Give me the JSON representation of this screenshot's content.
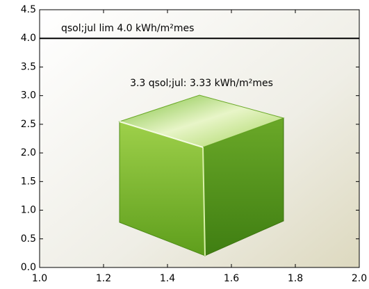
{
  "chart_data": {
    "type": "hline",
    "limit": {
      "value": 4.0,
      "label": "qsol;jul lim 4.0 kWh/m²mes"
    },
    "annotation": "3.3 qsol;jul: 3.33 kWh/m²mes",
    "color": "#000000",
    "xlim": [
      1.0,
      2.0
    ],
    "xticks": [
      {
        "value": 1,
        "label": "1.0"
      },
      1.2,
      1.4,
      1.6,
      1.8,
      {
        "value": 2,
        "label": "2.0"
      }
    ],
    "ylim": [
      0,
      4.5
    ],
    "yticks": [
      {
        "value": 0,
        "label": "0.0"
      },
      0.5,
      {
        "value": 1,
        "label": "1.0"
      },
      1.5,
      {
        "value": 2,
        "label": "2.0"
      },
      2.5,
      {
        "value": 3,
        "label": "3.0"
      },
      3.5,
      {
        "value": 4,
        "label": "4.0"
      },
      4.5
    ]
  }
}
